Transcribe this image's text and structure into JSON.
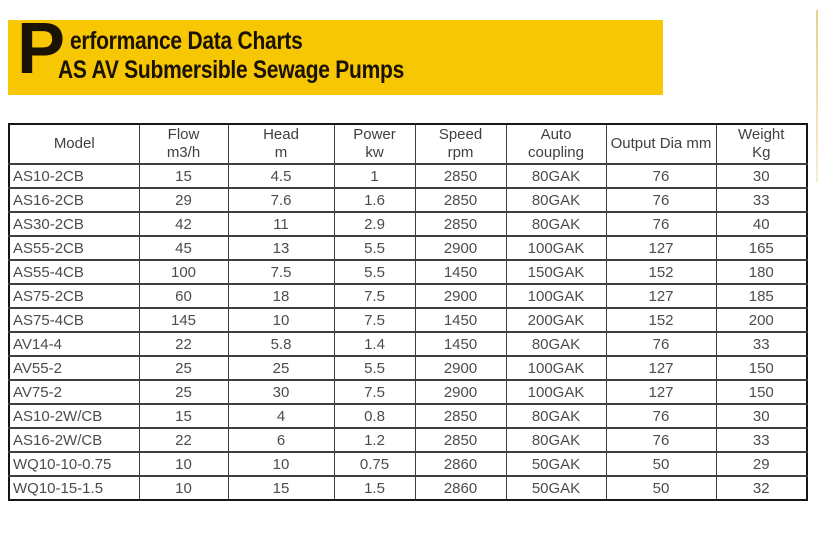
{
  "banner": {
    "drop_cap": "P",
    "title_line1": "erformance Data Charts",
    "title_line2": "AS AV Submersible Sewage Pumps",
    "background_color": "#F7C703",
    "text_color": "#1A1202"
  },
  "table": {
    "columns": [
      {
        "line1": "Model",
        "line2": ""
      },
      {
        "line1": "Flow",
        "line2": "m3/h"
      },
      {
        "line1": "Head",
        "line2": "m"
      },
      {
        "line1": "Power",
        "line2": "kw"
      },
      {
        "line1": "Speed",
        "line2": "rpm"
      },
      {
        "line1": "Auto",
        "line2": "coupling"
      },
      {
        "line1": "Output Dia mm",
        "line2": ""
      },
      {
        "line1": "Weight",
        "line2": "Kg"
      }
    ],
    "rows": [
      [
        "AS10-2CB",
        "15",
        "4.5",
        "1",
        "2850",
        "80GAK",
        "76",
        "30"
      ],
      [
        "AS16-2CB",
        "29",
        "7.6",
        "1.6",
        "2850",
        "80GAK",
        "76",
        "33"
      ],
      [
        "AS30-2CB",
        "42",
        "11",
        "2.9",
        "2850",
        "80GAK",
        "76",
        "40"
      ],
      [
        "AS55-2CB",
        "45",
        "13",
        "5.5",
        "2900",
        "100GAK",
        "127",
        "165"
      ],
      [
        "AS55-4CB",
        "100",
        "7.5",
        "5.5",
        "1450",
        "150GAK",
        "152",
        "180"
      ],
      [
        "AS75-2CB",
        "60",
        "18",
        "7.5",
        "2900",
        "100GAK",
        "127",
        "185"
      ],
      [
        "AS75-4CB",
        "145",
        "10",
        "7.5",
        "1450",
        "200GAK",
        "152",
        "200"
      ],
      [
        "AV14-4",
        "22",
        "5.8",
        "1.4",
        "1450",
        "80GAK",
        "76",
        "33"
      ],
      [
        "AV55-2",
        "25",
        "25",
        "5.5",
        "2900",
        "100GAK",
        "127",
        "150"
      ],
      [
        "AV75-2",
        "25",
        "30",
        "7.5",
        "2900",
        "100GAK",
        "127",
        "150"
      ],
      [
        "AS10-2W/CB",
        "15",
        "4",
        "0.8",
        "2850",
        "80GAK",
        "76",
        "30"
      ],
      [
        "AS16-2W/CB",
        "22",
        "6",
        "1.2",
        "2850",
        "80GAK",
        "76",
        "33"
      ],
      [
        "WQ10-10-0.75",
        "10",
        "10",
        "0.75",
        "2860",
        "50GAK",
        "50",
        "29"
      ],
      [
        "WQ10-15-1.5",
        "10",
        "15",
        "1.5",
        "2860",
        "50GAK",
        "50",
        "32"
      ]
    ]
  }
}
